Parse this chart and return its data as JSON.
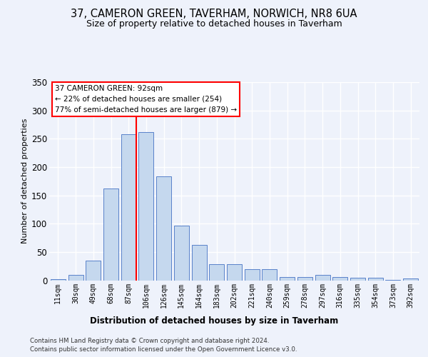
{
  "title_line1": "37, CAMERON GREEN, TAVERHAM, NORWICH, NR8 6UA",
  "title_line2": "Size of property relative to detached houses in Taverham",
  "xlabel": "Distribution of detached houses by size in Taverham",
  "ylabel": "Number of detached properties",
  "categories": [
    "11sqm",
    "30sqm",
    "49sqm",
    "68sqm",
    "87sqm",
    "106sqm",
    "126sqm",
    "145sqm",
    "164sqm",
    "183sqm",
    "202sqm",
    "221sqm",
    "240sqm",
    "259sqm",
    "278sqm",
    "297sqm",
    "316sqm",
    "335sqm",
    "354sqm",
    "373sqm",
    "392sqm"
  ],
  "values": [
    2,
    9,
    35,
    162,
    258,
    262,
    184,
    96,
    62,
    28,
    28,
    19,
    19,
    6,
    6,
    10,
    6,
    5,
    4,
    1,
    3
  ],
  "bar_color": "#c5d8ee",
  "bar_edge_color": "#4472c4",
  "vline_index": 4,
  "vline_color": "red",
  "annotation_text": "37 CAMERON GREEN: 92sqm\n← 22% of detached houses are smaller (254)\n77% of semi-detached houses are larger (879) →",
  "footer_line1": "Contains HM Land Registry data © Crown copyright and database right 2024.",
  "footer_line2": "Contains public sector information licensed under the Open Government Licence v3.0.",
  "bg_color": "#eef2fb",
  "plot_bg_color": "#eef2fb",
  "grid_color": "#ffffff",
  "ylim": [
    0,
    350
  ],
  "yticks": [
    0,
    50,
    100,
    150,
    200,
    250,
    300,
    350
  ]
}
